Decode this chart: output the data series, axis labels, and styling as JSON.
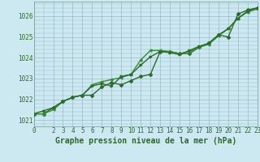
{
  "title": "Graphe pression niveau de la mer (hPa)",
  "bg_color": "#cce8f0",
  "plot_bg_color": "#cce8f0",
  "grid_color": "#99bbcc",
  "line_color": "#2d6a2d",
  "line_color2": "#3a8a3a",
  "xlim": [
    0,
    23
  ],
  "ylim": [
    1020.7,
    1026.7
  ],
  "yticks": [
    1021,
    1022,
    1023,
    1024,
    1025,
    1026
  ],
  "xticks": [
    0,
    2,
    3,
    4,
    5,
    6,
    7,
    8,
    9,
    10,
    11,
    12,
    13,
    14,
    15,
    16,
    17,
    18,
    19,
    20,
    21,
    22,
    23
  ],
  "series1": [
    1021.3,
    1021.3,
    1021.6,
    1021.9,
    1022.1,
    1022.2,
    1022.2,
    1022.6,
    1022.8,
    1022.7,
    1022.9,
    1023.1,
    1023.2,
    1024.3,
    1024.3,
    1024.2,
    1024.2,
    1024.5,
    1024.7,
    1025.1,
    1025.0,
    1026.1,
    1026.3,
    1026.4
  ],
  "series2": [
    1021.3,
    1021.3,
    1021.5,
    1021.9,
    1022.1,
    1022.2,
    1022.7,
    1022.85,
    1022.95,
    1023.05,
    1023.2,
    1023.9,
    1024.35,
    1024.35,
    1024.3,
    1024.2,
    1024.3,
    1024.5,
    1024.65,
    1025.05,
    1025.4,
    1025.9,
    1026.2,
    1026.35
  ],
  "series3": [
    1021.3,
    1021.45,
    1021.6,
    1021.9,
    1022.1,
    1022.2,
    1022.65,
    1022.75,
    1022.65,
    1023.1,
    1023.2,
    1023.65,
    1024.05,
    1024.3,
    1024.25,
    1024.15,
    1024.35,
    1024.55,
    1024.7,
    1025.1,
    1025.4,
    1025.9,
    1026.25,
    1026.4
  ],
  "title_fontsize": 7,
  "tick_fontsize": 5.5,
  "marker_size": 2.0,
  "line_width": 1.0
}
